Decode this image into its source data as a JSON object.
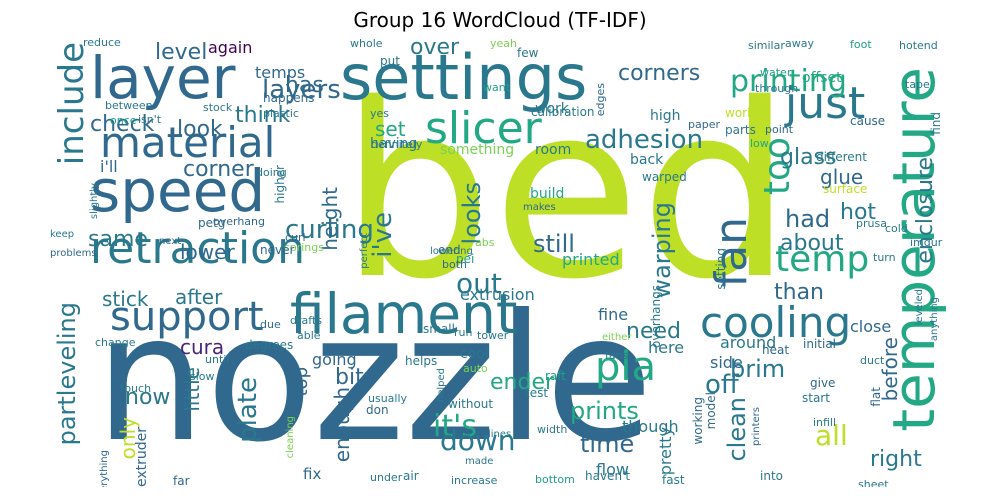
{
  "title": "Group 16 WordCloud (TF-IDF)",
  "palette": {
    "teal": "#2a788e",
    "blue": "#31688e",
    "green": "#22a884",
    "lime": "#bddf26",
    "purple": "#482677",
    "dark": "#440154",
    "light_green": "#7ad151",
    "cyan": "#1f9e89"
  },
  "words": {
    "bed": "bed",
    "nozzle": "nozzle",
    "settings": "settings",
    "speed": "speed",
    "layer": "layer",
    "temperature": "temperature",
    "filament": "filament",
    "retraction": "retraction",
    "slicer": "slicer",
    "material": "material",
    "cooling": "cooling",
    "support": "support",
    "fan": "fan",
    "just": "just",
    "include": "include",
    "printing": "printing",
    "pla": "pla",
    "temp": "temp",
    "too": "too",
    "layers": "layers",
    "adhesion": "adhesion",
    "corners": "corners",
    "its_apos": "it's",
    "ive": "i've",
    "partleveling": "partleveling",
    "plate": "plate",
    "enclosure": "enclosure",
    "curling": "curling",
    "warping": "warping",
    "out": "out",
    "down": "down",
    "all": "all",
    "glass": "glass",
    "still": "still",
    "level": "level",
    "check": "check",
    "corner": "corner",
    "look": "look",
    "think": "think",
    "has": "has",
    "same": "same",
    "had": "had",
    "hot": "hot",
    "about": "about",
    "glue": "glue",
    "height": "height",
    "looks": "looks",
    "time": "time",
    "prints": "prints",
    "ender": "ender",
    "bit": "bit",
    "now": "now",
    "off": "off",
    "brim": "brim",
    "clean": "clean",
    "right": "right",
    "before": "before",
    "little": "little",
    "only": "only",
    "enough": "enough",
    "need": "need",
    "stick": "stick",
    "after": "after",
    "cura": "cura",
    "than": "than",
    "over": "over",
    "set": "set",
    "lower": "lower",
    "top": "top",
    "fine": "fine",
    "again": "again",
    "temps": "temps",
    "ill": "i'll",
    "printed": "printed",
    "extrusion": "extrusion",
    "here": "here",
    "though": "though",
    "pretty": "pretty",
    "fix": "fix",
    "flow": "flow",
    "extruder": "extruder",
    "touch": "touch",
    "side": "side",
    "close": "close",
    "around": "around",
    "going": "going",
    "cool": "cool",
    "working": "working",
    "model": "model",
    "heat": "heat",
    "initial": "initial",
    "surface": "surface",
    "different": "different",
    "cause": "cause",
    "works": "works",
    "parts": "parts",
    "high": "high",
    "having": "having",
    "something": "something",
    "room": "room",
    "back": "back",
    "work": "work",
    "calibration": "calibration",
    "happens": "happens",
    "between": "between",
    "stock": "stock",
    "offset": "offset",
    "water": "water",
    "through": "through",
    "find": "find",
    "paper": "paper",
    "point": "point",
    "low": "low",
    "tape": "tape",
    "hotend": "hotend",
    "foot": "foot",
    "similar": "similar",
    "away": "away",
    "few": "few",
    "edges": "edges",
    "want": "want",
    "yeah": "yeah",
    "put": "put",
    "whole": "whole",
    "reduce": "reduce",
    "once": "once",
    "isnt": "isn't",
    "plastic": "plastic",
    "yes": "yes",
    "definitely": "definitely",
    "slightly": "slightly",
    "doing": "doing",
    "higher": "higher",
    "overhang": "overhang",
    "petg": "petg",
    "curl": "curl",
    "springs": "springs",
    "never": "never",
    "keep": "keep",
    "problems": "problems",
    "next": "next",
    "pei": "pei",
    "lowering": "lowering",
    "perfect": "perfect",
    "both": "both",
    "end": "end",
    "abs": "abs",
    "build": "build",
    "makes": "makes",
    "warped": "warped",
    "overhangs": "overhangs",
    "setting": "setting",
    "imgur": "imgur",
    "prusa": "prusa",
    "turn": "turn",
    "cold": "cold",
    "leveled": "leveled",
    "anything": "anything",
    "drafts": "drafts",
    "due": "due",
    "small": "small",
    "either": "either",
    "able": "able",
    "helped": "helped",
    "tower": "tower",
    "run": "run",
    "fans": "fans",
    "change": "change",
    "degrees": "degrees",
    "until": "until",
    "slow": "slow",
    "helps": "helps",
    "auto": "auto",
    "test": "test",
    "raft": "raft",
    "without": "without",
    "usually": "usually",
    "don": "don",
    "cleaning": "cleaning",
    "lines": "lines",
    "width": "width",
    "made": "made",
    "everything": "everything",
    "printers": "printers",
    "give": "give",
    "start": "start",
    "infill": "infill",
    "duct": "duct",
    "flat": "flat",
    "far": "far",
    "under": "under",
    "air": "air",
    "increase": "increase",
    "bottom": "bottom",
    "havent": "haven't",
    "fast": "fast",
    "into": "into",
    "sheet": "sheet"
  }
}
